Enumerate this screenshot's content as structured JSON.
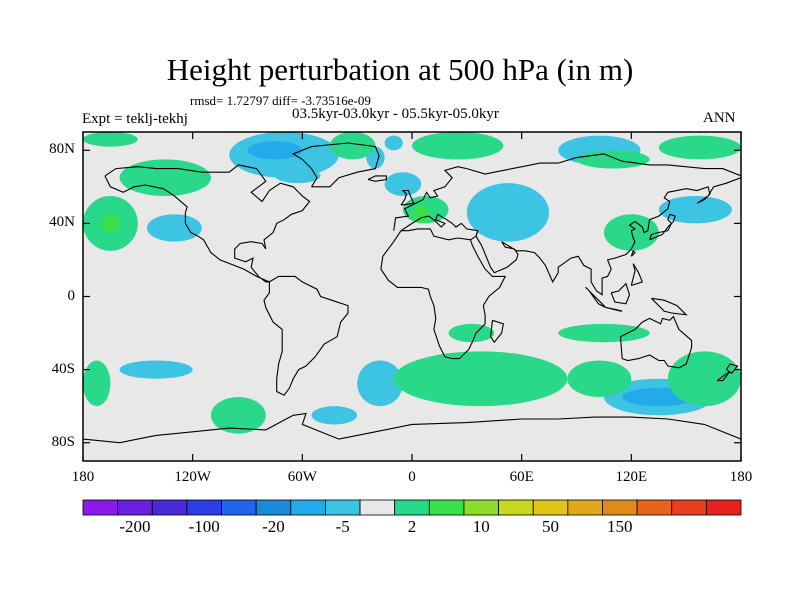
{
  "title": "Height perturbation at 500 hPa (in m)",
  "stats": "rmsd= 1.72797 diff= -3.73516e-09",
  "period": "03.5kyr-03.0kyr - 05.5kyr-05.0kyr",
  "experiment": "Expt = teklj-tekhj",
  "season": "ANN",
  "chart_data": {
    "type": "heatmap",
    "projection": "cylindrical equidistant",
    "xlim": [
      -180,
      180
    ],
    "ylim": [
      -90,
      90
    ],
    "x_ticks": [
      {
        "value": -180,
        "label": "180"
      },
      {
        "value": -120,
        "label": "120W"
      },
      {
        "value": -60,
        "label": "60W"
      },
      {
        "value": 0,
        "label": "0"
      },
      {
        "value": 60,
        "label": "60E"
      },
      {
        "value": 120,
        "label": "120E"
      },
      {
        "value": 180,
        "label": "180"
      }
    ],
    "y_ticks": [
      {
        "value": 80,
        "label": "80N"
      },
      {
        "value": 40,
        "label": "40N"
      },
      {
        "value": 0,
        "label": "0"
      },
      {
        "value": -40,
        "label": "40S"
      },
      {
        "value": -80,
        "label": "80S"
      }
    ],
    "colorbar": {
      "colors": [
        "#8b1ae8",
        "#6a1fe0",
        "#4a2ad8",
        "#2a3ee4",
        "#1f64ec",
        "#1a8ad8",
        "#22aaea",
        "#3cc4e2",
        "#e8e8e8",
        "#2ad88a",
        "#3ae04a",
        "#8edc2a",
        "#c8d81e",
        "#e0c41a",
        "#e0a81a",
        "#e08a1c",
        "#e8641c",
        "#e8401e",
        "#e8201e"
      ],
      "labels": [
        "-200",
        "-100",
        "-20",
        "-5",
        "2",
        "10",
        "50",
        "150"
      ],
      "missing_color": "#e8e8e8",
      "positive_color": "#2ad88a",
      "strong_positive_color": "#3ae04a",
      "negative_color": "#3cc4e2",
      "strong_negative_color": "#22aaea"
    },
    "regions": [
      {
        "sign": "negative",
        "lon": [
          -100,
          -40
        ],
        "lat": [
          65,
          90
        ]
      },
      {
        "sign": "negative",
        "lon": [
          -25,
          -15
        ],
        "lat": [
          70,
          82
        ]
      },
      {
        "sign": "negative",
        "lon": [
          -15,
          5
        ],
        "lat": [
          55,
          68
        ]
      },
      {
        "sign": "negative",
        "lon": [
          -75,
          -50
        ],
        "lat": [
          62,
          70
        ]
      },
      {
        "sign": "negative",
        "lon": [
          -145,
          -115
        ],
        "lat": [
          30,
          45
        ]
      },
      {
        "sign": "negative",
        "lon": [
          30,
          75
        ],
        "lat": [
          30,
          62
        ]
      },
      {
        "sign": "negative",
        "lon": [
          -15,
          -5
        ],
        "lat": [
          80,
          88
        ]
      },
      {
        "sign": "negative",
        "lon": [
          80,
          125
        ],
        "lat": [
          72,
          88
        ]
      },
      {
        "sign": "negative",
        "lon": [
          135,
          175
        ],
        "lat": [
          40,
          55
        ]
      },
      {
        "sign": "negative",
        "lon": [
          -160,
          -120
        ],
        "lat": [
          -45,
          -35
        ]
      },
      {
        "sign": "negative",
        "lon": [
          -30,
          -5
        ],
        "lat": [
          -60,
          -35
        ]
      },
      {
        "sign": "negative",
        "lon": [
          -55,
          -30
        ],
        "lat": [
          -70,
          -60
        ]
      },
      {
        "sign": "negative",
        "lon": [
          105,
          165
        ],
        "lat": [
          -65,
          -45
        ]
      },
      {
        "sign": "strong_negative",
        "lon": [
          -90,
          -60
        ],
        "lat": [
          75,
          85
        ]
      },
      {
        "sign": "strong_negative",
        "lon": [
          115,
          155
        ],
        "lat": [
          -60,
          -50
        ]
      },
      {
        "sign": "positive",
        "lon": [
          -180,
          -150
        ],
        "lat": [
          82,
          90
        ]
      },
      {
        "sign": "positive",
        "lon": [
          -160,
          -110
        ],
        "lat": [
          55,
          75
        ]
      },
      {
        "sign": "positive",
        "lon": [
          -180,
          -150
        ],
        "lat": [
          25,
          55
        ]
      },
      {
        "sign": "positive",
        "lon": [
          -45,
          -20
        ],
        "lat": [
          75,
          90
        ]
      },
      {
        "sign": "positive",
        "lon": [
          0,
          50
        ],
        "lat": [
          75,
          90
        ]
      },
      {
        "sign": "positive",
        "lon": [
          135,
          180
        ],
        "lat": [
          75,
          88
        ]
      },
      {
        "sign": "positive",
        "lon": [
          90,
          130
        ],
        "lat": [
          70,
          80
        ]
      },
      {
        "sign": "positive",
        "lon": [
          -5,
          20
        ],
        "lat": [
          40,
          55
        ]
      },
      {
        "sign": "positive",
        "lon": [
          105,
          135
        ],
        "lat": [
          25,
          45
        ]
      },
      {
        "sign": "positive",
        "lon": [
          -180,
          -165
        ],
        "lat": [
          -60,
          -35
        ]
      },
      {
        "sign": "positive",
        "lon": [
          -110,
          -80
        ],
        "lat": [
          -75,
          -55
        ]
      },
      {
        "sign": "positive",
        "lon": [
          -10,
          85
        ],
        "lat": [
          -60,
          -30
        ]
      },
      {
        "sign": "positive",
        "lon": [
          85,
          120
        ],
        "lat": [
          -55,
          -35
        ]
      },
      {
        "sign": "positive",
        "lon": [
          20,
          45
        ],
        "lat": [
          -25,
          -15
        ]
      },
      {
        "sign": "positive",
        "lon": [
          80,
          130
        ],
        "lat": [
          -25,
          -15
        ]
      },
      {
        "sign": "positive",
        "lon": [
          140,
          180
        ],
        "lat": [
          -60,
          -30
        ]
      },
      {
        "sign": "strong_positive",
        "lon": [
          -170,
          -160
        ],
        "lat": [
          35,
          45
        ]
      },
      {
        "sign": "strong_positive",
        "lon": [
          0,
          10
        ],
        "lat": [
          40,
          50
        ]
      }
    ]
  }
}
